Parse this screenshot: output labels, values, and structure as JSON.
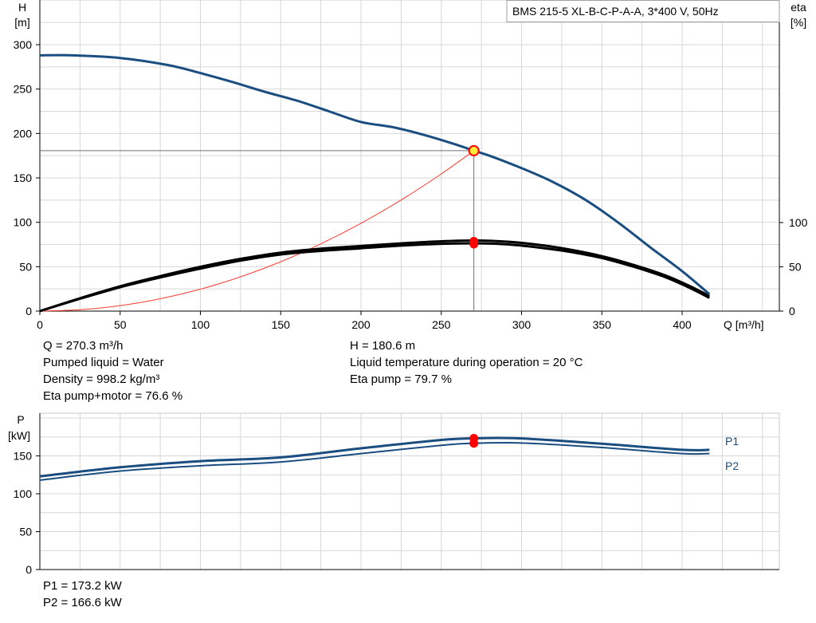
{
  "chart_data": [
    {
      "type": "line",
      "title": "BMS 215-5 XL-B-C-P-A-A, 3*400 V, 50Hz",
      "xlabel": "Q [m³/h]",
      "ylabel_main": "H",
      "ylabel_main_unit": "[m]",
      "ylabel_right": "eta",
      "ylabel_right_unit": "[%]",
      "xlim": [
        0,
        450
      ],
      "ylim": [
        0,
        300
      ],
      "x_ticks": [
        0,
        50,
        100,
        150,
        200,
        250,
        300,
        350,
        400
      ],
      "y_ticks": [
        0,
        50,
        100,
        150,
        200,
        250,
        300
      ],
      "y_right_ticks": [
        0,
        50,
        100
      ],
      "grid": true,
      "colors": {
        "head": "#1a4d80",
        "eta": "#000000",
        "system": "#ff3b30",
        "duty": "#ff0000",
        "duty_yellow": "#ffeb3b"
      },
      "series": [
        {
          "key": "head",
          "x": [
            0,
            20,
            50,
            80,
            100,
            120,
            140,
            160,
            180,
            200,
            220,
            240,
            260,
            270.3,
            280,
            300,
            320,
            340,
            360,
            380,
            400,
            417
          ],
          "y": [
            288,
            288,
            285,
            277,
            268,
            258,
            247,
            237,
            225,
            213,
            207,
            198,
            187,
            180.6,
            175,
            161,
            145,
            125,
            100,
            72,
            45,
            19
          ]
        },
        {
          "key": "eta-pump-motor",
          "x": [
            0,
            25,
            50,
            75,
            100,
            125,
            150,
            175,
            200,
            225,
            250,
            270.3,
            290,
            310,
            330,
            350,
            370,
            390,
            405,
            417
          ],
          "y": [
            0,
            14,
            27,
            38,
            48,
            57,
            64,
            68,
            71,
            74,
            76,
            76.6,
            75.5,
            72,
            67,
            60,
            50,
            38,
            26,
            15
          ]
        },
        {
          "key": "eta-pump",
          "x": [
            0,
            25,
            50,
            75,
            100,
            125,
            150,
            175,
            200,
            225,
            250,
            270.3,
            290,
            310,
            330,
            350,
            370,
            390,
            405,
            417
          ],
          "y": [
            0,
            14.5,
            28,
            39.5,
            50,
            59,
            66,
            70.5,
            73.5,
            76.5,
            78.8,
            79.7,
            78.5,
            75,
            69.5,
            62,
            52,
            40,
            28,
            17
          ]
        },
        {
          "key": "system",
          "x": [
            0,
            25,
            50,
            75,
            100,
            125,
            150,
            175,
            200,
            225,
            250,
            270.3
          ],
          "y": [
            0,
            1.5,
            6.2,
            13.9,
            24.7,
            38.6,
            55.6,
            75.7,
            98.9,
            125.1,
            154.5,
            180.6
          ]
        }
      ],
      "duty_point": {
        "Q": 270.3,
        "H": 180.6,
        "eta_pump": 79.7,
        "eta_pump_motor": 76.6
      }
    },
    {
      "type": "line",
      "ylabel": "P",
      "ylabel_unit": "[kW]",
      "xlim": [
        0,
        450
      ],
      "ylim": [
        0,
        200
      ],
      "y_ticks": [
        0,
        50,
        100,
        150
      ],
      "grid": true,
      "series": [
        {
          "name": "P1",
          "x": [
            0,
            50,
            100,
            150,
            200,
            250,
            270.3,
            300,
            350,
            400,
            417
          ],
          "y": [
            123,
            135,
            143,
            148,
            160,
            171,
            173.2,
            173,
            166,
            158,
            158
          ]
        },
        {
          "name": "P2",
          "x": [
            0,
            50,
            100,
            150,
            200,
            250,
            270.3,
            300,
            350,
            400,
            417
          ],
          "y": [
            118,
            130,
            137,
            142,
            153,
            164,
            166.6,
            167,
            161,
            153,
            153
          ]
        }
      ]
    }
  ],
  "info": {
    "q_line": "Q = 270.3 m³/h",
    "h_line": "H = 180.6 m",
    "liquid_line": "Pumped liquid = Water",
    "temp_line": "Liquid temperature during operation = 20 °C",
    "density_line": "Density = 998.2 kg/m³",
    "eta_pump_line": "Eta pump = 79.7 %",
    "eta_pm_line": "Eta pump+motor = 76.6 %",
    "p1_line": "P1 = 173.2 kW",
    "p2_line": "P2 = 166.6 kW"
  }
}
